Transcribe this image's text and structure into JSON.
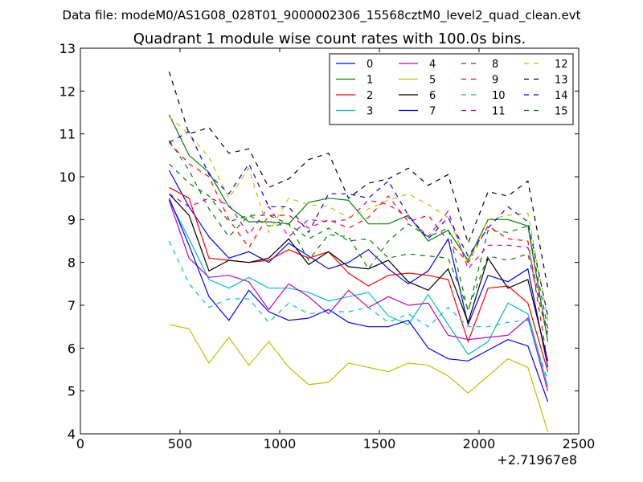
{
  "suptitle": "Data file: modeM0/AS1G08_028T01_9000002306_15568cztM0_level2_quad_clean.evt",
  "chart_data": {
    "type": "line",
    "title": "Quadrant 1 module wise count rates with 100.0s bins.",
    "xlabel": "",
    "ylabel": "",
    "x_offset_label": "+2.71967e8",
    "xlim": [
      0,
      2500
    ],
    "ylim": [
      4,
      13
    ],
    "xticks": [
      0,
      500,
      1000,
      1500,
      2000,
      2500
    ],
    "yticks": [
      4,
      5,
      6,
      7,
      8,
      9,
      10,
      11,
      12,
      13
    ],
    "legend_position": "top-right",
    "x": [
      445,
      545,
      645,
      745,
      845,
      945,
      1045,
      1145,
      1245,
      1345,
      1445,
      1545,
      1645,
      1745,
      1845,
      1945,
      2045,
      2145,
      2245,
      2345
    ],
    "series": [
      {
        "name": "0",
        "color": "#0000ff",
        "style": "solid",
        "values": [
          10.15,
          9.3,
          8.6,
          8.1,
          8.25,
          8.0,
          8.45,
          8.15,
          7.85,
          8.0,
          8.3,
          7.85,
          7.5,
          7.8,
          8.55,
          6.55,
          7.7,
          7.55,
          7.85,
          5.55
        ]
      },
      {
        "name": "1",
        "color": "#008000",
        "style": "solid",
        "values": [
          11.45,
          10.5,
          10.1,
          9.3,
          8.95,
          8.95,
          8.9,
          9.4,
          9.5,
          9.45,
          8.9,
          8.9,
          9.1,
          8.5,
          8.75,
          8.05,
          9.0,
          9.0,
          8.85,
          6.15
        ]
      },
      {
        "name": "2",
        "color": "#ff0000",
        "style": "solid",
        "values": [
          9.75,
          9.5,
          8.1,
          8.05,
          8.0,
          8.05,
          8.3,
          8.1,
          8.25,
          7.75,
          7.45,
          7.7,
          7.75,
          7.7,
          7.6,
          6.15,
          7.4,
          7.45,
          7.05,
          5.45
        ]
      },
      {
        "name": "3",
        "color": "#00bfbf",
        "style": "solid",
        "values": [
          9.45,
          8.55,
          7.6,
          7.4,
          7.65,
          7.4,
          7.4,
          7.3,
          7.1,
          7.2,
          7.3,
          6.75,
          6.55,
          7.25,
          6.55,
          5.85,
          6.15,
          7.05,
          6.8,
          5.1
        ]
      },
      {
        "name": "4",
        "color": "#bf00bf",
        "style": "solid",
        "values": [
          9.45,
          8.1,
          7.65,
          7.7,
          7.55,
          6.9,
          7.5,
          7.2,
          6.8,
          7.35,
          6.95,
          7.2,
          7.0,
          7.05,
          6.3,
          6.2,
          6.25,
          6.3,
          6.7,
          5.0
        ]
      },
      {
        "name": "5",
        "color": "#bfbf00",
        "style": "solid",
        "values": [
          6.55,
          6.45,
          5.65,
          6.25,
          5.6,
          6.15,
          5.55,
          5.15,
          5.2,
          5.65,
          5.55,
          5.45,
          5.65,
          5.6,
          5.35,
          4.95,
          5.35,
          5.75,
          5.55,
          4.05
        ]
      },
      {
        "name": "6",
        "color": "#000000",
        "style": "solid",
        "values": [
          9.6,
          9.1,
          7.8,
          8.05,
          8.0,
          8.1,
          8.55,
          7.95,
          8.25,
          7.9,
          7.85,
          8.05,
          7.55,
          7.35,
          7.85,
          6.6,
          8.1,
          7.4,
          7.6,
          5.7
        ]
      },
      {
        "name": "7",
        "color": "#0000ff",
        "style": "solid",
        "values": [
          9.5,
          8.4,
          7.2,
          6.65,
          7.35,
          6.85,
          6.65,
          6.7,
          6.9,
          6.6,
          6.5,
          6.5,
          6.65,
          6.0,
          5.75,
          5.7,
          5.95,
          6.2,
          6.05,
          4.75
        ]
      },
      {
        "name": "8",
        "color": "#008000",
        "style": "dashed",
        "values": [
          10.85,
          10.15,
          9.25,
          8.6,
          9.1,
          9.1,
          8.9,
          8.05,
          8.65,
          8.6,
          7.85,
          8.5,
          8.9,
          8.6,
          8.8,
          6.85,
          8.75,
          8.7,
          8.85,
          6.45
        ]
      },
      {
        "name": "9",
        "color": "#ff0000",
        "style": "dashed",
        "values": [
          10.8,
          10.3,
          10.0,
          9.0,
          8.35,
          9.1,
          9.1,
          8.8,
          9.0,
          8.8,
          9.05,
          9.55,
          8.95,
          9.1,
          8.5,
          8.0,
          8.85,
          8.55,
          8.5,
          5.65
        ]
      },
      {
        "name": "10",
        "color": "#00bfbf",
        "style": "dashed",
        "values": [
          8.5,
          7.5,
          6.95,
          7.15,
          7.15,
          6.6,
          7.05,
          6.8,
          6.85,
          6.85,
          6.95,
          6.6,
          6.8,
          6.5,
          6.95,
          6.5,
          6.5,
          6.6,
          6.65,
          5.25
        ]
      },
      {
        "name": "11",
        "color": "#bf00bf",
        "style": "dashed",
        "values": [
          9.6,
          9.3,
          9.5,
          9.35,
          8.65,
          9.3,
          8.6,
          9.0,
          8.95,
          9.0,
          9.45,
          9.35,
          9.05,
          8.6,
          9.2,
          7.85,
          8.4,
          8.4,
          8.35,
          6.35
        ]
      },
      {
        "name": "12",
        "color": "#bfbf00",
        "style": "dashed",
        "values": [
          11.4,
          11.0,
          10.45,
          9.5,
          10.2,
          8.7,
          9.5,
          9.35,
          9.3,
          9.05,
          9.25,
          9.45,
          9.6,
          9.35,
          9.05,
          7.95,
          9.0,
          9.1,
          9.15,
          6.65
        ]
      },
      {
        "name": "13",
        "color": "#000000",
        "style": "dashed",
        "values": [
          12.45,
          11.0,
          11.15,
          10.55,
          10.65,
          9.75,
          9.95,
          10.4,
          10.55,
          9.5,
          9.85,
          9.95,
          10.2,
          9.8,
          10.05,
          8.45,
          9.65,
          9.55,
          9.9,
          7.4
        ]
      },
      {
        "name": "14",
        "color": "#0000ff",
        "style": "dashed",
        "values": [
          10.8,
          11.05,
          10.05,
          9.6,
          10.3,
          9.3,
          9.3,
          8.7,
          9.6,
          9.6,
          9.5,
          9.9,
          9.1,
          8.55,
          9.05,
          8.15,
          8.8,
          9.3,
          8.95,
          6.75
        ]
      },
      {
        "name": "15",
        "color": "#008000",
        "style": "dashed",
        "values": [
          10.3,
          9.85,
          9.55,
          8.95,
          9.1,
          8.85,
          8.9,
          8.55,
          8.8,
          8.5,
          8.55,
          8.1,
          8.2,
          8.15,
          8.1,
          6.9,
          8.15,
          8.05,
          8.2,
          6.25
        ]
      }
    ]
  }
}
